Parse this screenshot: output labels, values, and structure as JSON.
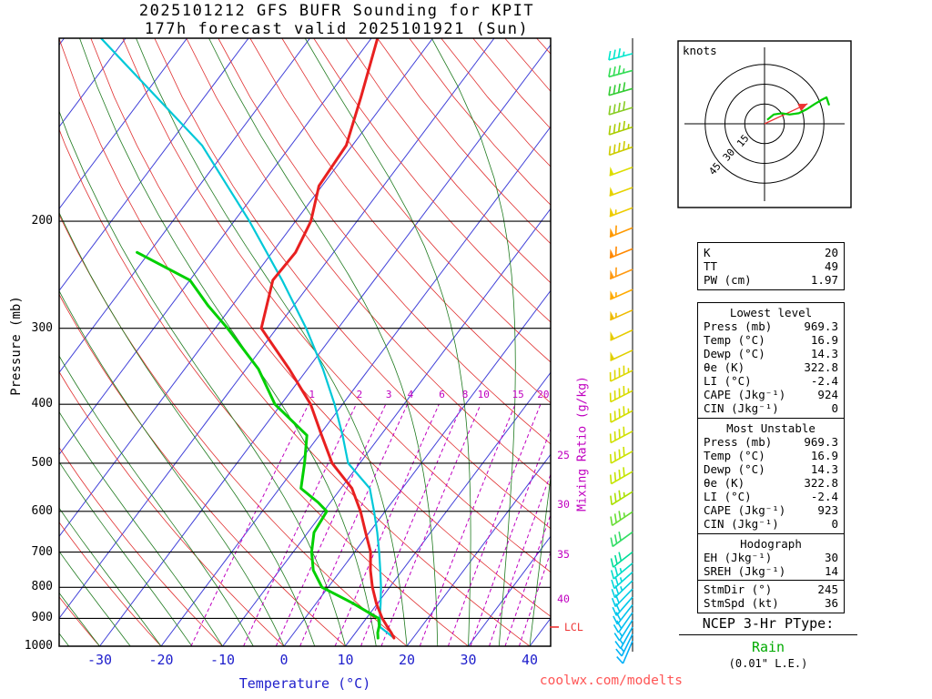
{
  "title": {
    "line1": "2025101212 GFS BUFR Sounding for KPIT",
    "line2": "177h forecast valid 2025101921 (Sun)"
  },
  "axes": {
    "pressure_label": "Pressure (mb)",
    "temperature_label": "Temperature (°C)",
    "mixing_ratio_label": "Mixing Ratio (g/kg)",
    "pressure_ticks": [
      200,
      300,
      400,
      500,
      600,
      700,
      800,
      900,
      1000
    ],
    "temperature_ticks": [
      -30,
      -20,
      -10,
      0,
      10,
      20,
      30,
      40
    ]
  },
  "chart_data": {
    "type": "line",
    "subtype": "skew-t log-p sounding",
    "pressure_range_mb": [
      100,
      1000
    ],
    "temperature_axis_range_c": [
      -36.6,
      43.4
    ],
    "grid": {
      "isotherm_step_c": 10,
      "dry_adiabat_theta_c": [
        -30,
        190,
        10
      ],
      "moist_adiabat_thetaw_c": [
        -35,
        45,
        5
      ]
    },
    "temperature_profile": {
      "name": "Temperature",
      "color": "#e82020",
      "points": [
        [
          969.3,
          16.9
        ],
        [
          950,
          15.8
        ],
        [
          925,
          14.2
        ],
        [
          900,
          12.6
        ],
        [
          850,
          9.8
        ],
        [
          800,
          7.2
        ],
        [
          750,
          4.8
        ],
        [
          700,
          2.6
        ],
        [
          650,
          -0.6
        ],
        [
          600,
          -4.0
        ],
        [
          550,
          -8.2
        ],
        [
          500,
          -14.5
        ],
        [
          450,
          -19.6
        ],
        [
          400,
          -25.2
        ],
        [
          350,
          -33.0
        ],
        [
          300,
          -42.5
        ],
        [
          250,
          -46.5
        ],
        [
          225,
          -46.2
        ],
        [
          200,
          -47.5
        ],
        [
          175,
          -50.5
        ],
        [
          150,
          -51.0
        ],
        [
          125,
          -54.5
        ],
        [
          100,
          -59.0
        ]
      ]
    },
    "dewpoint_profile": {
      "name": "Dewpoint",
      "color": "#00d000",
      "points": [
        [
          969.3,
          14.3
        ],
        [
          950,
          13.6
        ],
        [
          925,
          13.0
        ],
        [
          900,
          12.0
        ],
        [
          850,
          6.0
        ],
        [
          800,
          -1.0
        ],
        [
          750,
          -4.5
        ],
        [
          700,
          -7.0
        ],
        [
          650,
          -9.0
        ],
        [
          600,
          -9.5
        ],
        [
          580,
          -12.0
        ],
        [
          550,
          -16.5
        ],
        [
          500,
          -19.0
        ],
        [
          450,
          -22.0
        ],
        [
          400,
          -31.0
        ],
        [
          350,
          -38.0
        ],
        [
          300,
          -48.0
        ],
        [
          275,
          -54.0
        ],
        [
          250,
          -60.0
        ],
        [
          225,
          -72.0
        ]
      ]
    },
    "parcel_path": {
      "name": "Surface parcel",
      "color": "#00c8d8",
      "points": [
        [
          969.3,
          16.9
        ],
        [
          930,
          13.3
        ],
        [
          900,
          12.2
        ],
        [
          850,
          10.5
        ],
        [
          800,
          8.6
        ],
        [
          750,
          6.4
        ],
        [
          700,
          4.0
        ],
        [
          650,
          1.3
        ],
        [
          600,
          -1.8
        ],
        [
          550,
          -5.3
        ],
        [
          500,
          -11.9
        ],
        [
          450,
          -16.2
        ],
        [
          400,
          -21.3
        ],
        [
          350,
          -27.5
        ],
        [
          300,
          -35.2
        ],
        [
          250,
          -45.0
        ],
        [
          200,
          -57.5
        ],
        [
          150,
          -74.5
        ],
        [
          100,
          -104.0
        ]
      ]
    },
    "lcl": {
      "label": "LCL",
      "pressure_mb": 930
    },
    "mixing_ratio": {
      "color": "#c000c0",
      "values": [
        1,
        2,
        3,
        4,
        6,
        8,
        10,
        15,
        20,
        25,
        30,
        35,
        40
      ],
      "inline_labels": [
        1,
        2,
        3,
        4,
        6,
        8,
        10,
        15,
        20
      ],
      "inline_label_pressure": 390,
      "edge_labels": [
        {
          "value": 25,
          "pressure": 485
        },
        {
          "value": 30,
          "pressure": 585
        },
        {
          "value": 35,
          "pressure": 705
        },
        {
          "value": 40,
          "pressure": 835
        }
      ]
    },
    "wind_barbs": [
      [
        106,
        35,
        255,
        "#00e6cc"
      ],
      [
        113,
        35,
        255,
        "#33dd55"
      ],
      [
        121,
        40,
        254,
        "#33cc33"
      ],
      [
        130,
        40,
        253,
        "#88cc22"
      ],
      [
        140,
        45,
        252,
        "#aacc00"
      ],
      [
        151,
        45,
        251,
        "#cccc00"
      ],
      [
        163,
        50,
        250,
        "#dddd00"
      ],
      [
        176,
        50,
        250,
        "#e6d200"
      ],
      [
        190,
        55,
        249,
        "#eecc00"
      ],
      [
        205,
        60,
        248,
        "#ff9900"
      ],
      [
        222,
        60,
        248,
        "#ff8800"
      ],
      [
        240,
        60,
        247,
        "#ff9911"
      ],
      [
        259,
        55,
        246,
        "#ffaa00"
      ],
      [
        280,
        55,
        246,
        "#eebb00"
      ],
      [
        302,
        50,
        245,
        "#e6cc00"
      ],
      [
        326,
        50,
        245,
        "#e0d000"
      ],
      [
        352,
        45,
        244,
        "#dcd800"
      ],
      [
        380,
        45,
        243,
        "#d8dc00"
      ],
      [
        410,
        45,
        242,
        "#d4de00"
      ],
      [
        443,
        40,
        242,
        "#d0e000"
      ],
      [
        478,
        40,
        241,
        "#cce200"
      ],
      [
        516,
        40,
        240,
        "#c4e400"
      ],
      [
        557,
        35,
        238,
        "#aae000"
      ],
      [
        601,
        35,
        236,
        "#66dd33"
      ],
      [
        649,
        30,
        234,
        "#33dd66"
      ],
      [
        700,
        30,
        232,
        "#00dd99"
      ],
      [
        730,
        25,
        230,
        "#00dcc8"
      ],
      [
        755,
        25,
        228,
        "#00d8d8"
      ],
      [
        780,
        25,
        226,
        "#00d0e0"
      ],
      [
        805,
        20,
        224,
        "#00cce6"
      ],
      [
        830,
        20,
        221,
        "#00c8ea"
      ],
      [
        855,
        20,
        218,
        "#00c4ee"
      ],
      [
        880,
        20,
        215,
        "#00c0f0"
      ],
      [
        905,
        15,
        212,
        "#00bcf2"
      ],
      [
        930,
        15,
        209,
        "#00b8f4"
      ],
      [
        955,
        15,
        206,
        "#00b4f6"
      ],
      [
        980,
        10,
        203,
        "#00b0f8"
      ]
    ],
    "hodograph": {
      "unit_label": "knots",
      "rings_kt": [
        15,
        30,
        45
      ],
      "trace_kt": [
        [
          2,
          3
        ],
        [
          7,
          7
        ],
        [
          13,
          8
        ],
        [
          19,
          7
        ],
        [
          26,
          8
        ],
        [
          32,
          11
        ],
        [
          38,
          15
        ],
        [
          43,
          18
        ],
        [
          47,
          20
        ],
        [
          49,
          14
        ]
      ],
      "trace_color": "#00cc00",
      "storm_motion_uv_kt": [
        32.6,
        15.2
      ],
      "storm_color": "#ee3333"
    }
  },
  "indices": {
    "basic": {
      "rows": [
        [
          "K",
          "20"
        ],
        [
          "TT",
          "49"
        ],
        [
          "PW (cm)",
          "1.97"
        ]
      ]
    },
    "lowest_level": {
      "header": "Lowest level",
      "rows": [
        [
          "Press (mb)",
          "969.3"
        ],
        [
          "Temp (°C)",
          "16.9"
        ],
        [
          "Dewp (°C)",
          "14.3"
        ],
        [
          "θe (K)",
          "322.8"
        ],
        [
          "LI (°C)",
          "-2.4"
        ],
        [
          "CAPE (Jkg⁻¹)",
          "924"
        ],
        [
          "CIN (Jkg⁻¹)",
          "0"
        ]
      ]
    },
    "most_unstable": {
      "header": "Most Unstable",
      "rows": [
        [
          "Press (mb)",
          "969.3"
        ],
        [
          "Temp (°C)",
          "16.9"
        ],
        [
          "Dewp (°C)",
          "14.3"
        ],
        [
          "θe (K)",
          "322.8"
        ],
        [
          "LI (°C)",
          "-2.4"
        ],
        [
          "CAPE (Jkg⁻¹)",
          "923"
        ],
        [
          "CIN (Jkg⁻¹)",
          "0"
        ]
      ]
    },
    "hodograph_box": {
      "header": "Hodograph",
      "rows_a": [
        [
          "EH (Jkg⁻¹)",
          "30"
        ],
        [
          "SREH (Jkg⁻¹)",
          "14"
        ]
      ],
      "rows_b": [
        [
          "StmDir (°)",
          "245"
        ],
        [
          "StmSpd (kt)",
          "36"
        ]
      ]
    }
  },
  "ptype": {
    "title": "NCEP 3-Hr PType:",
    "value": "Rain",
    "note": "(0.01\" L.E.)"
  },
  "labels": {
    "knots": "knots",
    "lcl": "LCL"
  },
  "watermark": "coolwx.com/modelts",
  "colors": {
    "isotherm": "#4040d8",
    "dry_adiabat": "#e03030",
    "moist_adiabat": "#1f7a1f",
    "mixing_ratio": "#c000c0",
    "temperature": "#e82020",
    "dewpoint": "#00d000",
    "parcel": "#00c8d8",
    "axis_temperature_text": "#2020cc",
    "watermark": "#ff5555",
    "ptype_value": "#00aa00"
  }
}
